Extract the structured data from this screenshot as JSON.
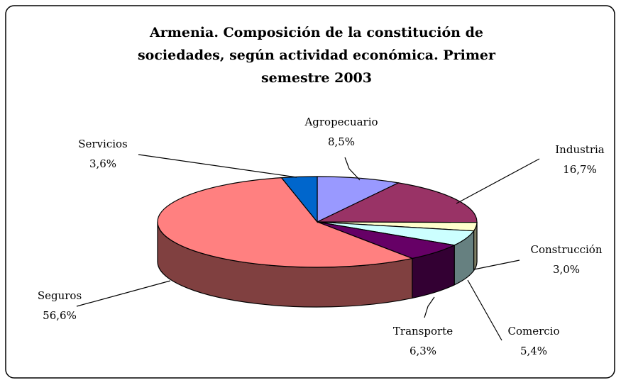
{
  "chart_data": {
    "type": "pie3d",
    "title": "Armenia. Composición de la constitución de sociedades, según actividad económica. Primer semestre 2003",
    "categories": [
      "Agropecuario",
      "Industria",
      "Construcción",
      "Comercio",
      "Transporte",
      "Seguros",
      "Servicios"
    ],
    "values": [
      8.5,
      16.7,
      3.0,
      5.4,
      6.3,
      56.6,
      3.6
    ],
    "value_labels": [
      "8,5%",
      "16,7%",
      "3,0%",
      "5,4%",
      "6,3%",
      "56,6%",
      "3,6%"
    ],
    "colors": [
      "#9999ff",
      "#993366",
      "#ffffcc",
      "#ccffff",
      "#660066",
      "#ff8080",
      "#0066cc"
    ]
  }
}
